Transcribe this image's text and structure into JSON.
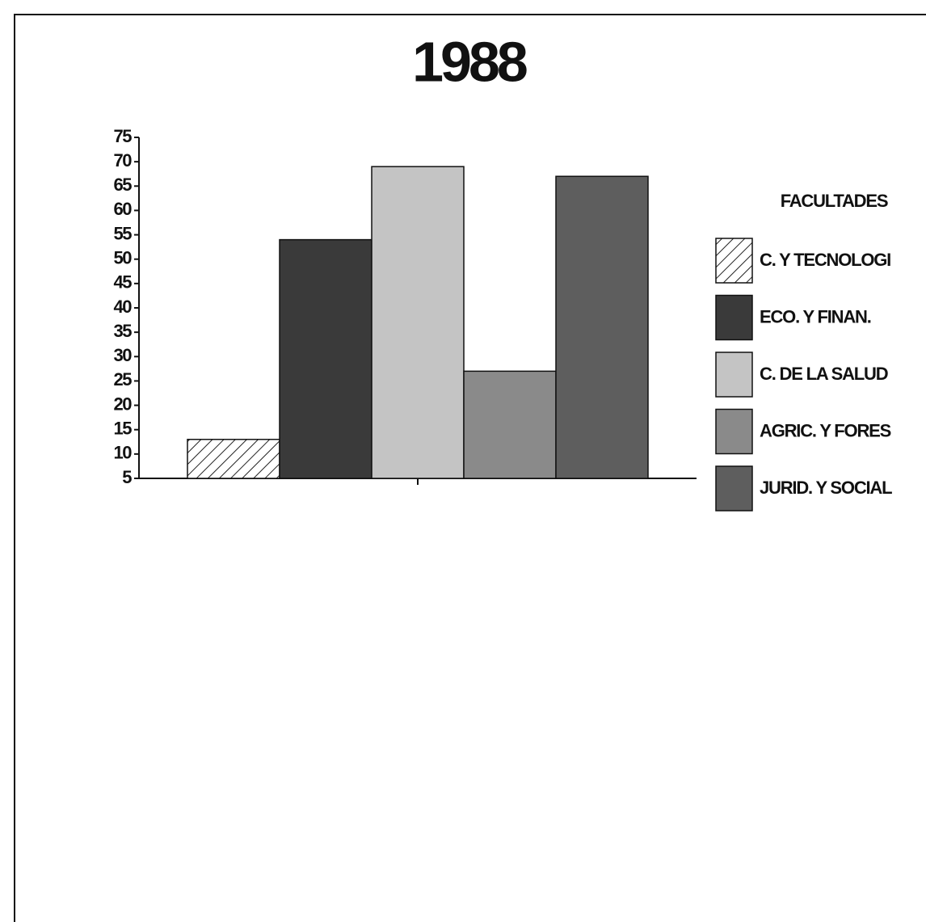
{
  "chart_data": {
    "type": "bar",
    "title": "1988",
    "legend_title": "FACULTADES",
    "categories": [
      null
    ],
    "series": [
      {
        "name": "C. Y TECNOLOGI",
        "color": "#ffffff",
        "pattern": "hatch",
        "values": [
          13
        ]
      },
      {
        "name": "ECO. Y FINAN.",
        "color": "#3a3a3a",
        "values": [
          54
        ]
      },
      {
        "name": "C. DE LA SALUD",
        "color": "#c4c4c4",
        "values": [
          69
        ]
      },
      {
        "name": "AGRIC. Y FORES",
        "color": "#8a8a8a",
        "values": [
          27
        ]
      },
      {
        "name": "JURID. Y SOCIAL",
        "color": "#5e5e5e",
        "values": [
          67
        ]
      }
    ],
    "ylim": [
      5,
      75
    ],
    "yticks": [
      5,
      10,
      15,
      20,
      25,
      30,
      35,
      40,
      45,
      50,
      55,
      60,
      65,
      70,
      75
    ],
    "legend": "right"
  }
}
